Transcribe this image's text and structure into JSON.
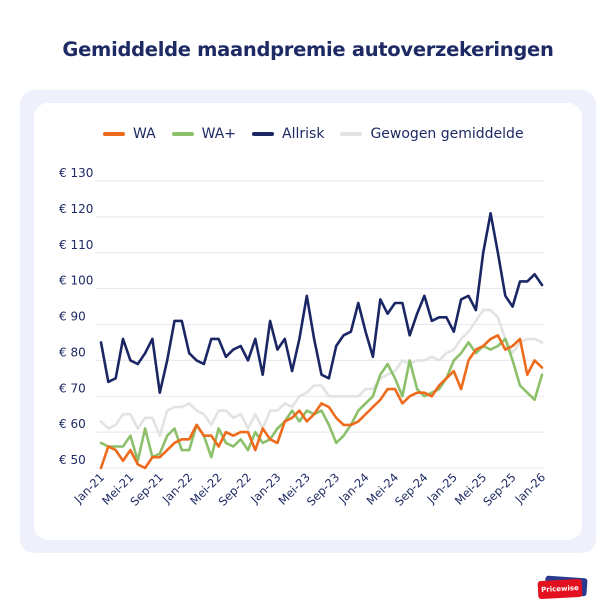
{
  "title": "Gemiddelde maandpremie autoverzekeringen",
  "logo_text": "Pricewise",
  "chart_data": {
    "type": "line",
    "title": "Gemiddelde maandpremie autoverzekeringen",
    "xlabel": "",
    "ylabel": "",
    "ylim": [
      50,
      130
    ],
    "y_ticks": [
      50,
      60,
      70,
      80,
      90,
      100,
      110,
      120,
      130
    ],
    "y_tick_labels": [
      "€ 50",
      "€ 60",
      "€ 70",
      "€ 80",
      "€ 90",
      "€ 100",
      "€ 110",
      "€ 120",
      "€ 130"
    ],
    "x_tick_labels": [
      "Jan-21",
      "Mei-21",
      "Sep-21",
      "Jan-22",
      "Mei-22",
      "Sep-22",
      "Jan-23",
      "Mei-23",
      "Sep-23",
      "Jan-24",
      "Mei-24",
      "Sep-24",
      "Jan-25",
      "Mei-25",
      "Sep-25",
      "Jan-26"
    ],
    "x_range": [
      "Jan-21",
      "Jan-26"
    ],
    "frequency": "monthly",
    "grid": true,
    "legend_position": "top",
    "series": [
      {
        "name": "WA",
        "color": "#ee6a1c",
        "values": [
          50,
          56,
          55,
          52,
          55,
          51,
          50,
          53,
          53,
          55,
          57,
          58,
          58,
          62,
          59,
          59,
          56,
          60,
          59,
          60,
          60,
          55,
          61,
          58,
          57,
          63,
          64,
          66,
          63,
          65,
          68,
          67,
          64,
          62,
          62,
          63,
          65,
          67,
          69,
          72,
          72,
          68,
          70,
          71,
          71,
          70,
          73,
          75,
          77,
          72,
          80,
          83,
          84,
          86,
          87,
          83,
          84,
          86,
          76,
          80,
          78
        ]
      },
      {
        "name": "WA+",
        "color": "#8cc06a",
        "values": [
          57,
          56,
          56,
          56,
          59,
          52,
          61,
          53,
          54,
          59,
          61,
          55,
          55,
          62,
          59,
          53,
          61,
          57,
          56,
          58,
          55,
          60,
          57,
          58,
          61,
          63,
          66,
          63,
          66,
          65,
          66,
          62,
          57,
          59,
          62,
          66,
          68,
          70,
          76,
          79,
          75,
          70,
          80,
          72,
          70,
          71,
          72,
          75,
          80,
          82,
          85,
          82,
          84,
          83,
          84,
          86,
          80,
          73,
          71,
          69,
          76
        ]
      },
      {
        "name": "Allrisk",
        "color": "#1b2664",
        "values": [
          85,
          74,
          75,
          86,
          80,
          79,
          82,
          86,
          71,
          80,
          91,
          91,
          82,
          80,
          79,
          86,
          86,
          81,
          83,
          84,
          80,
          86,
          76,
          91,
          83,
          86,
          77,
          86,
          98,
          86,
          76,
          75,
          84,
          87,
          88,
          96,
          88,
          81,
          97,
          93,
          96,
          96,
          87,
          93,
          98,
          91,
          92,
          92,
          88,
          97,
          98,
          94,
          110,
          121,
          110,
          98,
          95,
          102,
          102,
          104,
          101
        ]
      },
      {
        "name": "Gewogen gemiddelde",
        "color": "#e3e3e3",
        "values": [
          63,
          61,
          62,
          65,
          65,
          61,
          64,
          64,
          59,
          66,
          67,
          67,
          68,
          66,
          65,
          62,
          66,
          66,
          64,
          65,
          61,
          65,
          61,
          66,
          66,
          68,
          67,
          70,
          71,
          73,
          73,
          70,
          70,
          70,
          70,
          70,
          72,
          72,
          75,
          76,
          77,
          80,
          79,
          80,
          80,
          81,
          80,
          82,
          83,
          86,
          88,
          91,
          94,
          94,
          92,
          86,
          82,
          85,
          86,
          86,
          85
        ]
      }
    ]
  }
}
